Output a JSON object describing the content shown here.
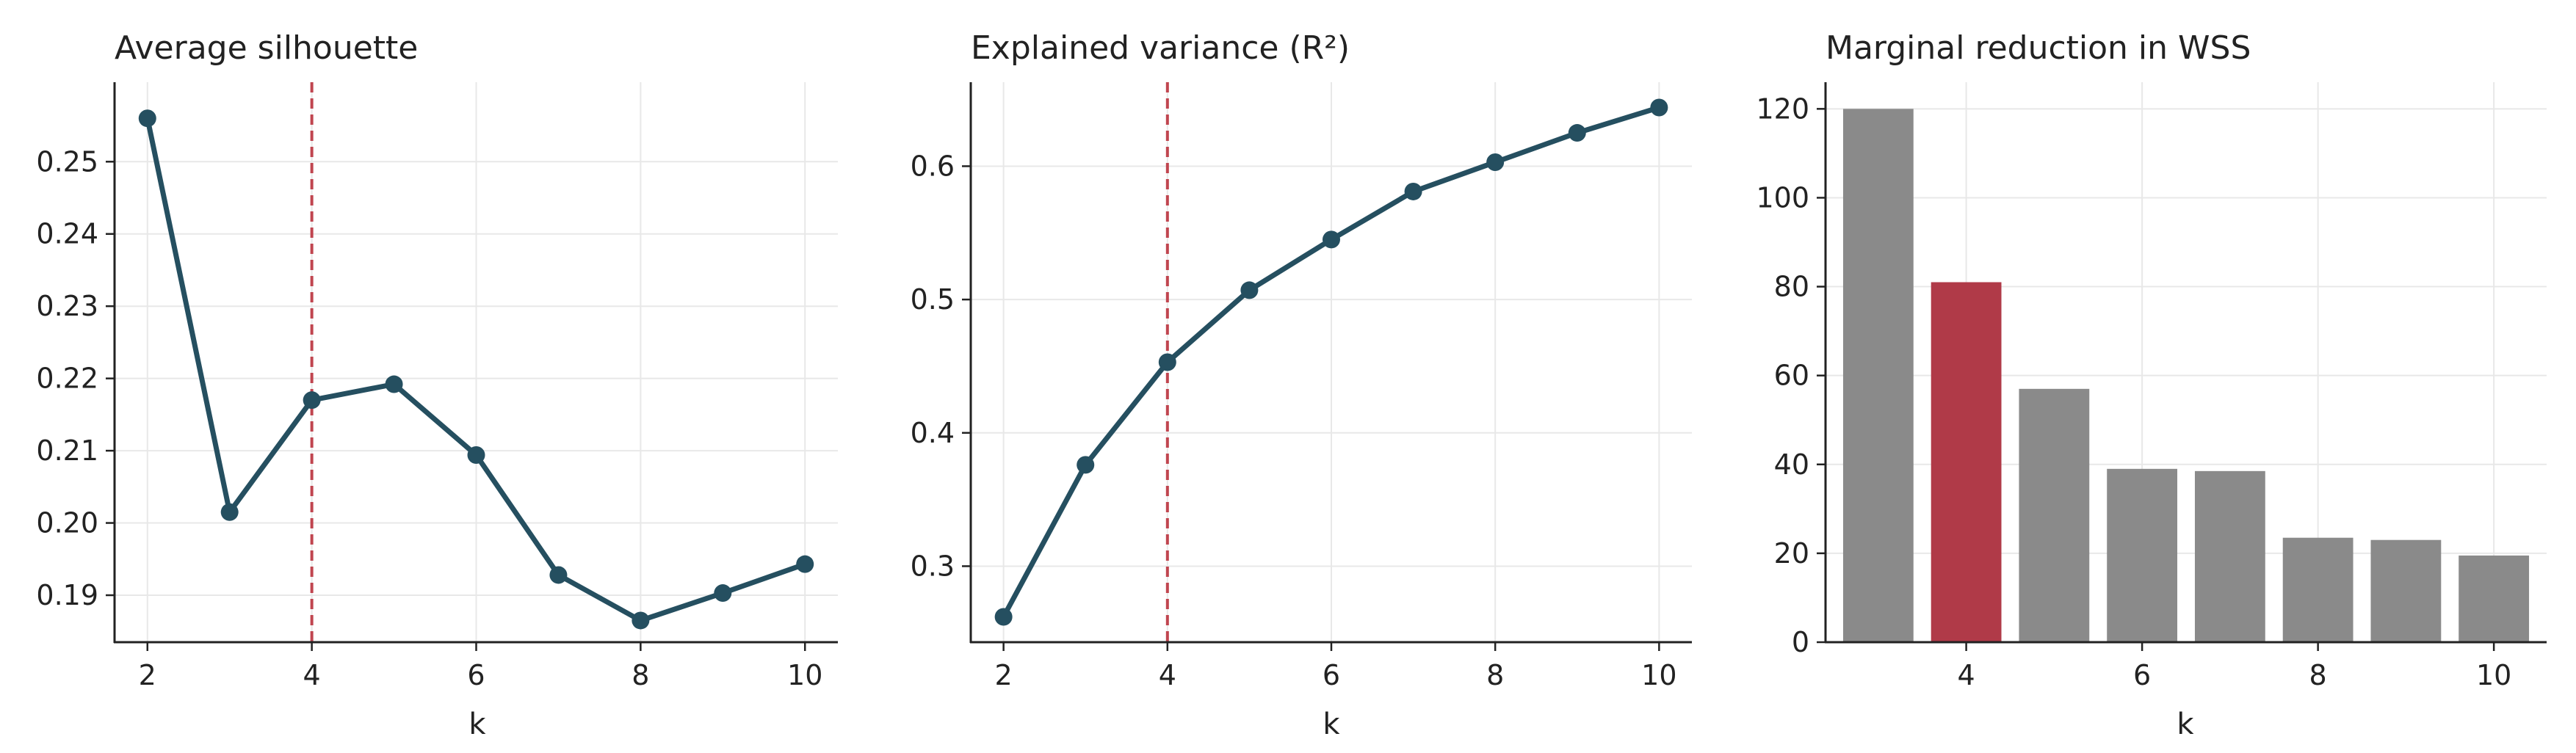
{
  "figure": {
    "background": "#ffffff",
    "line_color": "#254f60",
    "highlight_color": "#b03a48",
    "bar_color": "#8a8a8a",
    "refline_color": "#c0454f",
    "grid_color": "#e8e8e8"
  },
  "chart_data": [
    {
      "type": "line",
      "title": "Average silhouette",
      "xlabel": "k",
      "ylabel": "",
      "x": [
        2,
        3,
        4,
        5,
        6,
        7,
        8,
        9,
        10
      ],
      "y": [
        0.256,
        0.2015,
        0.217,
        0.2192,
        0.2094,
        0.1928,
        0.1865,
        0.1903,
        0.1943
      ],
      "xlim": [
        1.6,
        10.4
      ],
      "ylim": [
        0.1835,
        0.261
      ],
      "xticks": [
        2,
        4,
        6,
        8,
        10
      ],
      "yticks": [
        0.19,
        0.2,
        0.21,
        0.22,
        0.23,
        0.24,
        0.25
      ],
      "ytick_labels": [
        "0.19",
        "0.20",
        "0.21",
        "0.22",
        "0.23",
        "0.24",
        "0.25"
      ],
      "reference_x": 4,
      "grid": true
    },
    {
      "type": "line",
      "title": "Explained variance (R²)",
      "xlabel": "k",
      "ylabel": "",
      "x": [
        2,
        3,
        4,
        5,
        6,
        7,
        8,
        9,
        10
      ],
      "y": [
        0.262,
        0.376,
        0.453,
        0.507,
        0.545,
        0.581,
        0.603,
        0.625,
        0.644
      ],
      "xlim": [
        1.6,
        10.4
      ],
      "ylim": [
        0.243,
        0.663
      ],
      "xticks": [
        2,
        4,
        6,
        8,
        10
      ],
      "yticks": [
        0.3,
        0.4,
        0.5,
        0.6
      ],
      "ytick_labels": [
        "0.3",
        "0.4",
        "0.5",
        "0.6"
      ],
      "reference_x": 4,
      "grid": true
    },
    {
      "type": "bar",
      "title": "Marginal reduction in WSS",
      "xlabel": "k",
      "ylabel": "",
      "x": [
        3,
        4,
        5,
        6,
        7,
        8,
        9,
        10
      ],
      "values": [
        120,
        81,
        57,
        39,
        38.5,
        23.5,
        23,
        19.5
      ],
      "highlight_x": 4,
      "xlim": [
        2.4,
        10.6
      ],
      "ylim": [
        0,
        126
      ],
      "xticks": [
        4,
        6,
        8,
        10
      ],
      "yticks": [
        0,
        20,
        40,
        60,
        80,
        100,
        120
      ],
      "ytick_labels": [
        "0",
        "20",
        "40",
        "60",
        "80",
        "100",
        "120"
      ],
      "grid": true
    }
  ]
}
